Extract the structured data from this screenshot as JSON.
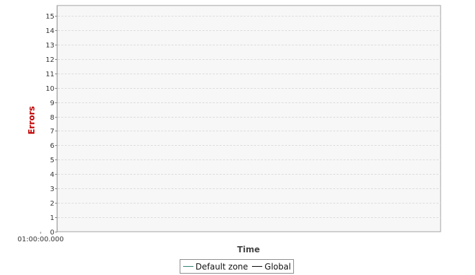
{
  "chart_data": {
    "type": "line",
    "xlabel": "Time",
    "ylabel": "Errors",
    "x_ticks": [
      "01:00:00.000"
    ],
    "ylim": [
      0,
      15
    ],
    "y_ticks": [
      0,
      1,
      2,
      3,
      4,
      5,
      6,
      7,
      8,
      9,
      10,
      11,
      12,
      13,
      14,
      15
    ],
    "grid": true,
    "legend_position": "bottom-center",
    "series": [
      {
        "name": "Default zone",
        "color": "#2e7d72",
        "values": []
      },
      {
        "name": "Global",
        "color": "#000000",
        "values": []
      }
    ],
    "colors": {
      "ylabel": "#c00000",
      "xlabel": "#444444"
    }
  }
}
